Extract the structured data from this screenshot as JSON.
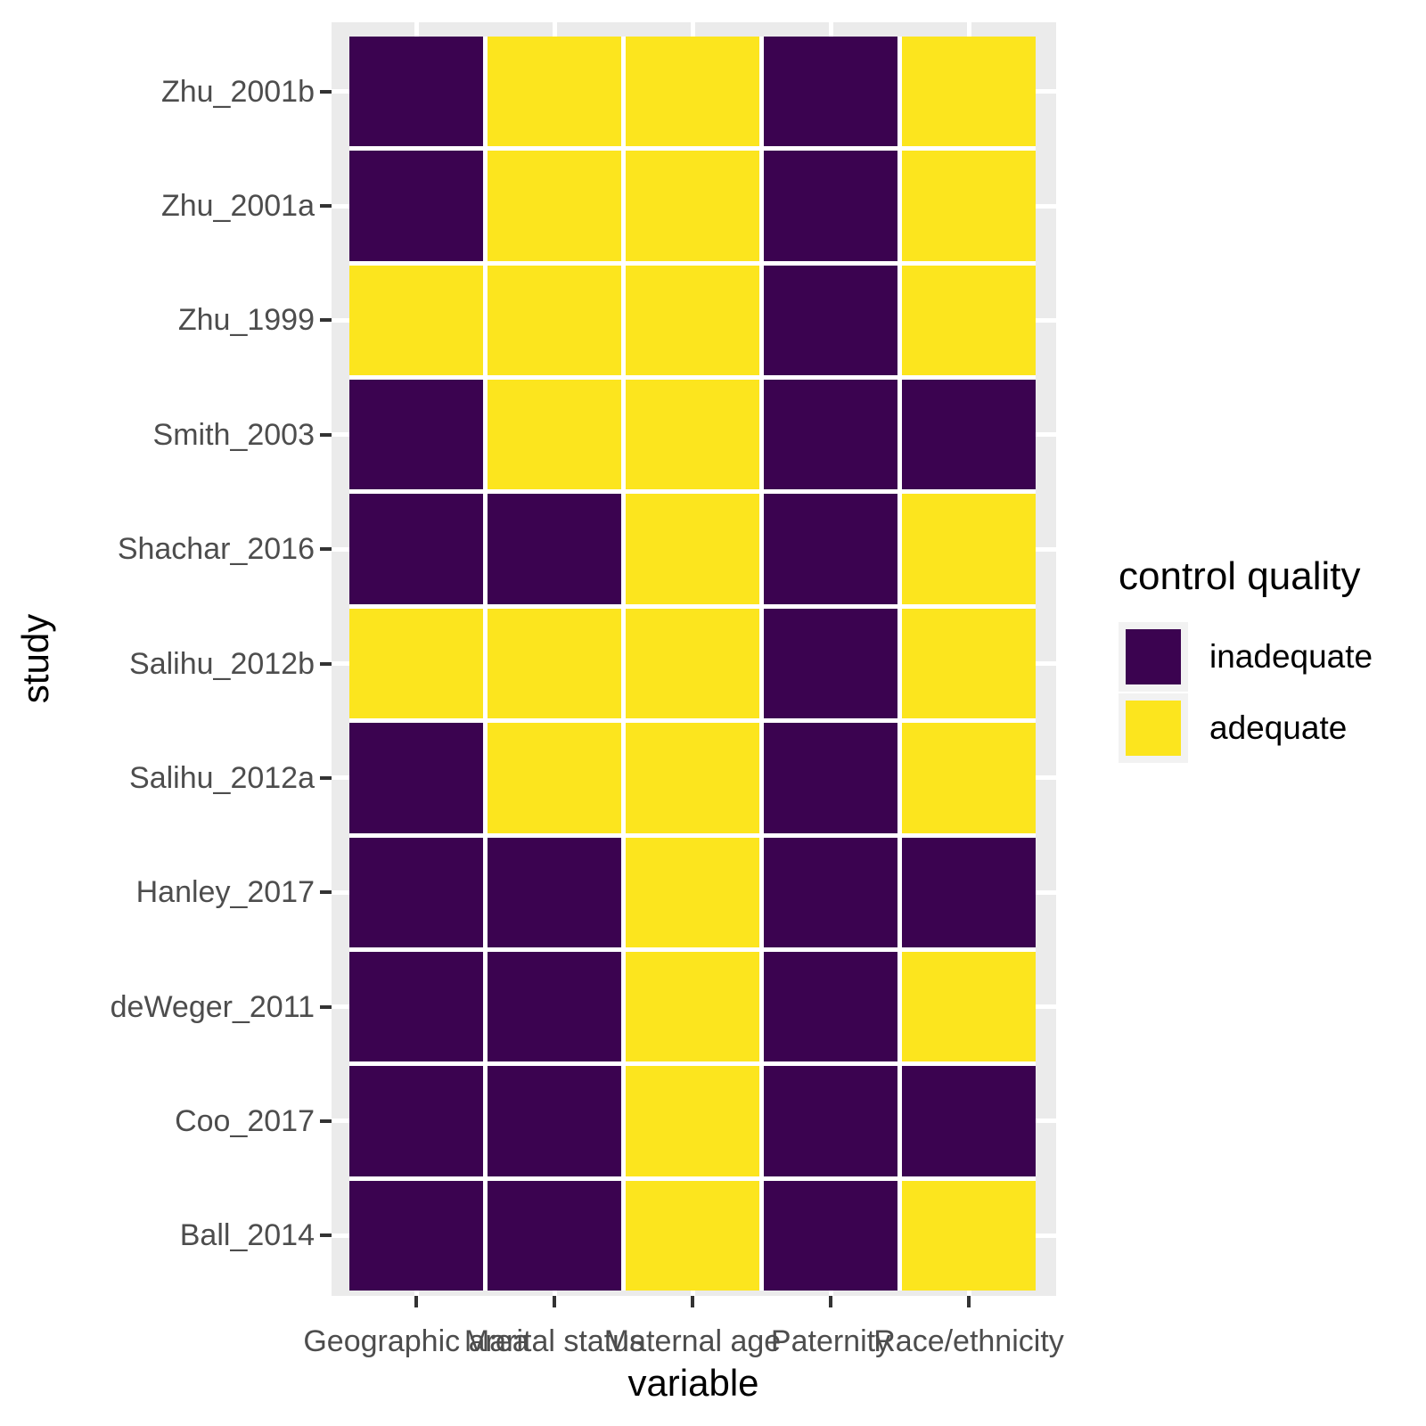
{
  "chart_data": {
    "type": "heatmap",
    "xlabel": "variable",
    "ylabel": "study",
    "columns": [
      "Geographic area",
      "Marital status",
      "Maternal age",
      "Paternity",
      "Race/ethnicity"
    ],
    "rows": [
      "Zhu_2001b",
      "Zhu_2001a",
      "Zhu_1999",
      "Smith_2003",
      "Shachar_2016",
      "Salihu_2012b",
      "Salihu_2012a",
      "Hanley_2017",
      "deWeger_2011",
      "Coo_2017",
      "Ball_2014"
    ],
    "values": [
      [
        "inadequate",
        "adequate",
        "adequate",
        "inadequate",
        "adequate"
      ],
      [
        "inadequate",
        "adequate",
        "adequate",
        "inadequate",
        "adequate"
      ],
      [
        "adequate",
        "adequate",
        "adequate",
        "inadequate",
        "adequate"
      ],
      [
        "inadequate",
        "adequate",
        "adequate",
        "inadequate",
        "inadequate"
      ],
      [
        "inadequate",
        "inadequate",
        "adequate",
        "inadequate",
        "adequate"
      ],
      [
        "adequate",
        "adequate",
        "adequate",
        "inadequate",
        "adequate"
      ],
      [
        "inadequate",
        "adequate",
        "adequate",
        "inadequate",
        "adequate"
      ],
      [
        "inadequate",
        "inadequate",
        "adequate",
        "inadequate",
        "inadequate"
      ],
      [
        "inadequate",
        "inadequate",
        "adequate",
        "inadequate",
        "adequate"
      ],
      [
        "inadequate",
        "inadequate",
        "adequate",
        "inadequate",
        "inadequate"
      ],
      [
        "inadequate",
        "inadequate",
        "adequate",
        "inadequate",
        "adequate"
      ]
    ],
    "legend": {
      "title": "control quality",
      "position": "right",
      "entries": [
        {
          "label": "inadequate",
          "color": "#3B0350"
        },
        {
          "label": "adequate",
          "color": "#FCE51E"
        }
      ]
    },
    "colors": {
      "inadequate": "#3B0350",
      "adequate": "#FCE51E"
    },
    "panel_background": "#EBEBEB",
    "grid_color": "#FFFFFF",
    "grid": "major on (white, hidden behind tiles)",
    "axis_ranges": {
      "x": "discrete (5 categories)",
      "y": "discrete (11 categories)"
    }
  }
}
